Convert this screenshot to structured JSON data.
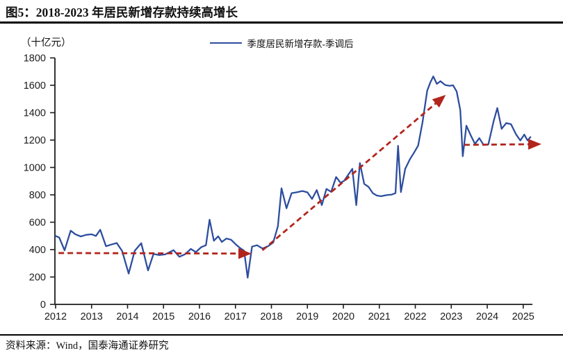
{
  "figure": {
    "title": "图5：2018-2023 年居民新增存款持续高增长",
    "source": "资料来源：Wind，国泰海通证券研究"
  },
  "chart_data": {
    "type": "line",
    "title": "图5：2018-2023 年居民新增存款持续高增长",
    "unit_label": "（十亿元）",
    "legend": [
      "季度居民新增存款-季调后"
    ],
    "legend_position": "top-center",
    "grid": false,
    "ylim": [
      0,
      1800
    ],
    "y_tick_step": 200,
    "x_ticks": [
      2012,
      2013,
      2014,
      2015,
      2016,
      2017,
      2018,
      2019,
      2020,
      2021,
      2022,
      2023,
      2024,
      2025
    ],
    "x_range": [
      2012,
      2025.45
    ],
    "axis_color": "#1c1c1c",
    "series": [
      {
        "name": "季度居民新增存款-季调后",
        "color": "#2d4d9e",
        "points": [
          [
            2012.0,
            500
          ],
          [
            2012.1,
            488
          ],
          [
            2012.25,
            395
          ],
          [
            2012.42,
            538
          ],
          [
            2012.55,
            512
          ],
          [
            2012.7,
            496
          ],
          [
            2012.85,
            508
          ],
          [
            2013.0,
            512
          ],
          [
            2013.12,
            500
          ],
          [
            2013.24,
            545
          ],
          [
            2013.4,
            425
          ],
          [
            2013.55,
            437
          ],
          [
            2013.7,
            448
          ],
          [
            2013.85,
            390
          ],
          [
            2014.03,
            225
          ],
          [
            2014.2,
            392
          ],
          [
            2014.38,
            447
          ],
          [
            2014.57,
            248
          ],
          [
            2014.72,
            368
          ],
          [
            2014.88,
            360
          ],
          [
            2015.05,
            365
          ],
          [
            2015.28,
            396
          ],
          [
            2015.44,
            348
          ],
          [
            2015.6,
            366
          ],
          [
            2015.76,
            405
          ],
          [
            2015.9,
            382
          ],
          [
            2016.05,
            418
          ],
          [
            2016.18,
            432
          ],
          [
            2016.28,
            618
          ],
          [
            2016.4,
            465
          ],
          [
            2016.52,
            497
          ],
          [
            2016.62,
            456
          ],
          [
            2016.75,
            481
          ],
          [
            2016.88,
            472
          ],
          [
            2017.0,
            440
          ],
          [
            2017.12,
            413
          ],
          [
            2017.24,
            392
          ],
          [
            2017.34,
            195
          ],
          [
            2017.46,
            422
          ],
          [
            2017.6,
            432
          ],
          [
            2017.75,
            408
          ],
          [
            2017.9,
            424
          ],
          [
            2018.05,
            452
          ],
          [
            2018.18,
            570
          ],
          [
            2018.28,
            848
          ],
          [
            2018.42,
            702
          ],
          [
            2018.56,
            812
          ],
          [
            2018.72,
            820
          ],
          [
            2018.86,
            828
          ],
          [
            2019.0,
            818
          ],
          [
            2019.13,
            770
          ],
          [
            2019.26,
            835
          ],
          [
            2019.4,
            725
          ],
          [
            2019.53,
            843
          ],
          [
            2019.66,
            822
          ],
          [
            2019.8,
            930
          ],
          [
            2019.92,
            888
          ],
          [
            2020.02,
            902
          ],
          [
            2020.14,
            948
          ],
          [
            2020.25,
            990
          ],
          [
            2020.36,
            725
          ],
          [
            2020.46,
            1032
          ],
          [
            2020.58,
            880
          ],
          [
            2020.7,
            858
          ],
          [
            2020.82,
            812
          ],
          [
            2020.93,
            795
          ],
          [
            2021.05,
            790
          ],
          [
            2021.2,
            798
          ],
          [
            2021.35,
            802
          ],
          [
            2021.45,
            812
          ],
          [
            2021.52,
            1158
          ],
          [
            2021.6,
            820
          ],
          [
            2021.72,
            990
          ],
          [
            2021.85,
            1060
          ],
          [
            2021.97,
            1110
          ],
          [
            2022.08,
            1160
          ],
          [
            2022.2,
            1330
          ],
          [
            2022.33,
            1560
          ],
          [
            2022.42,
            1622
          ],
          [
            2022.5,
            1665
          ],
          [
            2022.6,
            1610
          ],
          [
            2022.7,
            1630
          ],
          [
            2022.83,
            1602
          ],
          [
            2022.95,
            1596
          ],
          [
            2023.05,
            1600
          ],
          [
            2023.15,
            1555
          ],
          [
            2023.25,
            1420
          ],
          [
            2023.32,
            1082
          ],
          [
            2023.42,
            1305
          ],
          [
            2023.55,
            1230
          ],
          [
            2023.66,
            1172
          ],
          [
            2023.78,
            1214
          ],
          [
            2023.9,
            1164
          ],
          [
            2024.03,
            1168
          ],
          [
            2024.18,
            1340
          ],
          [
            2024.28,
            1434
          ],
          [
            2024.4,
            1282
          ],
          [
            2024.53,
            1324
          ],
          [
            2024.66,
            1316
          ],
          [
            2024.8,
            1242
          ],
          [
            2024.92,
            1197
          ],
          [
            2025.03,
            1240
          ],
          [
            2025.12,
            1197
          ],
          [
            2025.2,
            1222
          ]
        ]
      }
    ],
    "annotations": [
      {
        "type": "trend-arrow",
        "style": "dashed",
        "color": "#b2251d",
        "from": [
          2012.08,
          375
        ],
        "to": [
          2017.36,
          371
        ]
      },
      {
        "type": "trend-arrow",
        "style": "dashed",
        "color": "#b2251d",
        "from": [
          2017.75,
          395
        ],
        "to": [
          2022.78,
          1515
        ]
      },
      {
        "type": "trend-arrow",
        "style": "dashed",
        "color": "#b2251d",
        "from": [
          2023.36,
          1165
        ],
        "to": [
          2025.42,
          1170
        ]
      }
    ]
  }
}
